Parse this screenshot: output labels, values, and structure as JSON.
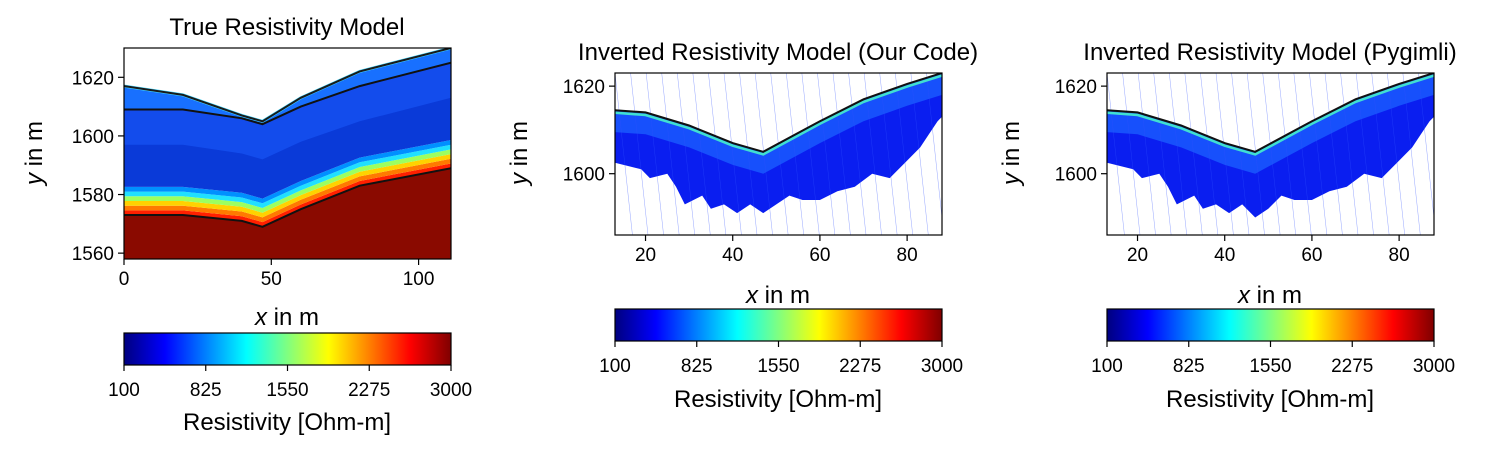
{
  "figure": {
    "colormap": "jet",
    "colormap_stops": [
      "#00007f",
      "#0000ff",
      "#0080ff",
      "#00ffff",
      "#80ff80",
      "#ffff00",
      "#ff8000",
      "#ff0000",
      "#7f0000"
    ]
  },
  "chart_data": [
    {
      "type": "heatmap",
      "title": "True Resistivity Model",
      "xlabel_var": "x",
      "xlabel_rest": " in m",
      "ylabel_var": "y",
      "ylabel_rest": " in m",
      "xlim": [
        0,
        111
      ],
      "ylim": [
        1558,
        1630
      ],
      "xticks": [
        0,
        50,
        100
      ],
      "yticks": [
        1560,
        1580,
        1600,
        1620
      ],
      "surface": [
        [
          0,
          1617
        ],
        [
          20,
          1614
        ],
        [
          40,
          1607
        ],
        [
          47,
          1605
        ],
        [
          60,
          1613
        ],
        [
          80,
          1622
        ],
        [
          111,
          1630
        ]
      ],
      "boundaries": [
        [
          [
            0,
            1609
          ],
          [
            20,
            1609
          ],
          [
            40,
            1606
          ],
          [
            47,
            1604
          ],
          [
            60,
            1610
          ],
          [
            80,
            1617
          ],
          [
            111,
            1625
          ]
        ],
        [
          [
            0,
            1573
          ],
          [
            20,
            1573
          ],
          [
            40,
            1571
          ],
          [
            47,
            1569
          ],
          [
            60,
            1575
          ],
          [
            80,
            1583
          ],
          [
            111,
            1589
          ]
        ]
      ],
      "layers": [
        {
          "top_offset": 0,
          "color": "#1060ff"
        },
        {
          "top_offset": 10,
          "color": "#0a36d8"
        },
        {
          "band": "transition",
          "color": "gradient"
        },
        {
          "top_offset": 44,
          "color": "#a01000"
        }
      ],
      "colorbar": {
        "ticks": [
          "100",
          "825",
          "1550",
          "2275",
          "3000"
        ],
        "label": "Resistivity [Ohm-m]",
        "range": [
          100,
          3000
        ]
      }
    },
    {
      "type": "heatmap",
      "title": "Inverted Resistivity Model (Our Code)",
      "xlabel_var": "x",
      "xlabel_rest": " in m",
      "ylabel_var": "y",
      "ylabel_rest": " in m",
      "xlim": [
        13,
        88
      ],
      "ylim": [
        1586,
        1623
      ],
      "xticks": [
        20,
        40,
        60,
        80
      ],
      "yticks": [
        1600,
        1620
      ],
      "surface": [
        [
          13,
          1614.5
        ],
        [
          20,
          1614
        ],
        [
          30,
          1611
        ],
        [
          40,
          1607
        ],
        [
          47,
          1605
        ],
        [
          60,
          1612
        ],
        [
          70,
          1617
        ],
        [
          80,
          1620.5
        ],
        [
          88,
          1623
        ]
      ],
      "bottom": [
        [
          13,
          1602.5
        ],
        [
          19,
          1601
        ],
        [
          21,
          1599
        ],
        [
          25,
          1600
        ],
        [
          27,
          1597
        ],
        [
          29,
          1593
        ],
        [
          33,
          1595
        ],
        [
          35,
          1592
        ],
        [
          38,
          1593
        ],
        [
          41,
          1591
        ],
        [
          44,
          1593
        ],
        [
          47,
          1591
        ],
        [
          50,
          1593
        ],
        [
          53,
          1595
        ],
        [
          56,
          1594
        ],
        [
          60,
          1594
        ],
        [
          64,
          1596
        ],
        [
          68,
          1597
        ],
        [
          72,
          1600
        ],
        [
          76,
          1599
        ],
        [
          80,
          1603
        ],
        [
          83,
          1606
        ],
        [
          85,
          1609
        ],
        [
          87,
          1612
        ],
        [
          88,
          1613
        ]
      ],
      "colorbar": {
        "ticks": [
          "100",
          "825",
          "1550",
          "2275",
          "3000"
        ],
        "label": "Resistivity [Ohm-m]",
        "range": [
          100,
          3000
        ]
      }
    },
    {
      "type": "heatmap",
      "title": "Inverted Resistivity Model (Pygimli)",
      "xlabel_var": "x",
      "xlabel_rest": " in m",
      "ylabel_var": "y",
      "ylabel_rest": " in m",
      "xlim": [
        13,
        88
      ],
      "ylim": [
        1586,
        1623
      ],
      "xticks": [
        20,
        40,
        60,
        80
      ],
      "yticks": [
        1600,
        1620
      ],
      "surface": [
        [
          13,
          1614.5
        ],
        [
          20,
          1614
        ],
        [
          30,
          1611
        ],
        [
          40,
          1607
        ],
        [
          47,
          1605
        ],
        [
          60,
          1612
        ],
        [
          70,
          1617
        ],
        [
          80,
          1620.5
        ],
        [
          88,
          1623
        ]
      ],
      "bottom": [
        [
          13,
          1602.5
        ],
        [
          19,
          1601
        ],
        [
          21,
          1599
        ],
        [
          25,
          1600
        ],
        [
          27,
          1597
        ],
        [
          29,
          1593
        ],
        [
          33,
          1595
        ],
        [
          35,
          1592
        ],
        [
          38,
          1593
        ],
        [
          41,
          1591
        ],
        [
          44,
          1593
        ],
        [
          47,
          1590
        ],
        [
          50,
          1592
        ],
        [
          53,
          1595
        ],
        [
          56,
          1594
        ],
        [
          60,
          1594
        ],
        [
          64,
          1596
        ],
        [
          68,
          1597
        ],
        [
          72,
          1600
        ],
        [
          76,
          1599
        ],
        [
          80,
          1603
        ],
        [
          83,
          1606
        ],
        [
          85,
          1609
        ],
        [
          87,
          1612
        ],
        [
          88,
          1613
        ]
      ],
      "colorbar": {
        "ticks": [
          "100",
          "825",
          "1550",
          "2275",
          "3000"
        ],
        "label": "Resistivity [Ohm-m]",
        "range": [
          100,
          3000
        ]
      }
    }
  ]
}
